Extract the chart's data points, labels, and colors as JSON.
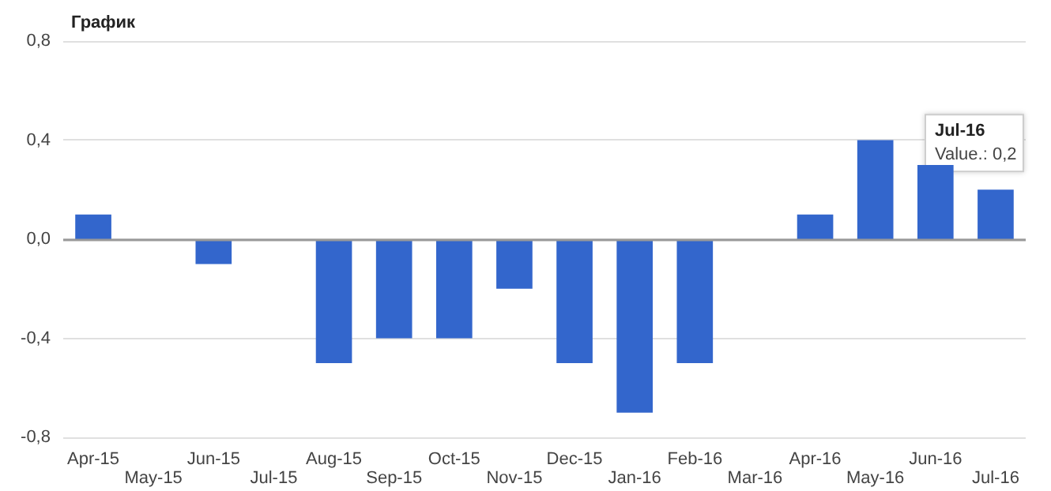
{
  "chart_data": {
    "type": "bar",
    "title": "График",
    "categories": [
      "Apr-15",
      "May-15",
      "Jun-15",
      "Jul-15",
      "Aug-15",
      "Sep-15",
      "Oct-15",
      "Nov-15",
      "Dec-15",
      "Jan-16",
      "Feb-16",
      "Mar-16",
      "Apr-16",
      "May-16",
      "Jun-16",
      "Jul-16"
    ],
    "values": [
      0.1,
      0,
      -0.1,
      0,
      -0.5,
      -0.4,
      -0.4,
      -0.2,
      -0.5,
      -0.7,
      -0.5,
      0,
      0.1,
      0.4,
      0.3,
      0.2
    ],
    "color": "#3366cc",
    "ylim": [
      -0.8,
      0.8
    ],
    "yticks": [
      {
        "value": -0.8,
        "label": "-0,8"
      },
      {
        "value": -0.4,
        "label": "-0,4"
      },
      {
        "value": 0,
        "label": "0,0"
      },
      {
        "value": 0.4,
        "label": "0,4"
      },
      {
        "value": 0.8,
        "label": "0,8"
      }
    ],
    "grid": "y",
    "annotations": [
      {
        "text": "Jul-16\nValue.: 0,2",
        "x": "Jul-16",
        "y": 0.2
      }
    ]
  }
}
